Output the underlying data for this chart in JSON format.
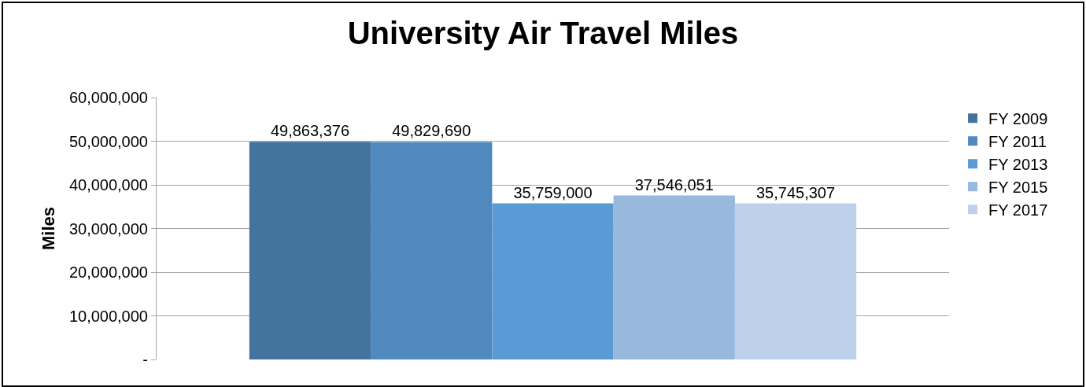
{
  "chart_data": {
    "type": "bar",
    "title": "University Air Travel Miles",
    "ylabel": "Miles",
    "categories": [
      null
    ],
    "series": [
      {
        "name": "FY 2009",
        "color": "#44739f",
        "values": [
          49863376
        ],
        "value_labels": [
          "49,863,376"
        ]
      },
      {
        "name": "FY 2011",
        "color": "#4f89bd",
        "values": [
          49829690
        ],
        "value_labels": [
          "49,829,690"
        ]
      },
      {
        "name": "FY 2013",
        "color": "#5b9bd5",
        "values": [
          35759000
        ],
        "value_labels": [
          "35,759,000"
        ]
      },
      {
        "name": "FY 2015",
        "color": "#98b8de",
        "values": [
          37546051
        ],
        "value_labels": [
          "37,546,051"
        ]
      },
      {
        "name": "FY 2017",
        "color": "#bdd1ea",
        "values": [
          35745307
        ],
        "value_labels": [
          "35,745,307"
        ]
      }
    ],
    "ylim": [
      0,
      60000000
    ],
    "yticks": [
      {
        "value": 0,
        "label": "-"
      },
      {
        "value": 10000000,
        "label": "10,000,000"
      },
      {
        "value": 20000000,
        "label": "20,000,000"
      },
      {
        "value": 30000000,
        "label": "30,000,000"
      },
      {
        "value": 40000000,
        "label": "40,000,000"
      },
      {
        "value": 50000000,
        "label": "50,000,000"
      },
      {
        "value": 60000000,
        "label": "60,000,000"
      }
    ],
    "grid": "y",
    "legend": "right"
  }
}
